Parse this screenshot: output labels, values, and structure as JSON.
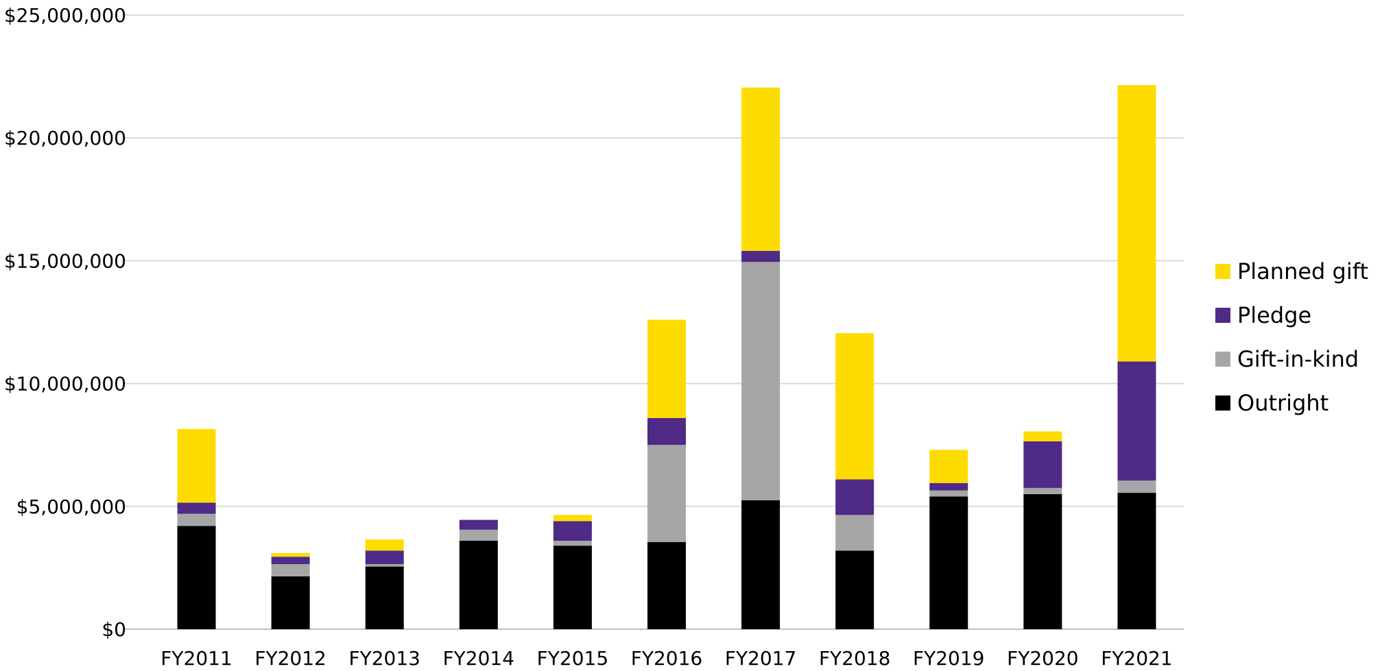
{
  "chart_data": {
    "type": "bar",
    "stacked": true,
    "title": "",
    "xlabel": "",
    "ylabel": "",
    "ylim": [
      0,
      25000000
    ],
    "y_ticks": [
      0,
      5000000,
      10000000,
      15000000,
      20000000,
      25000000
    ],
    "y_tick_labels": [
      "$0",
      "$5,000,000",
      "$10,000,000",
      "$15,000,000",
      "$20,000,000",
      "$25,000,000"
    ],
    "grid": true,
    "legend_position": "right",
    "categories": [
      "FY2011",
      "FY2012",
      "FY2013",
      "FY2014",
      "FY2015",
      "FY2016",
      "FY2017",
      "FY2018",
      "FY2019",
      "FY2020",
      "FY2021"
    ],
    "series": [
      {
        "name": "Outright",
        "color": "#000000",
        "values": [
          4200000,
          2150000,
          2550000,
          3600000,
          3400000,
          3550000,
          5250000,
          3200000,
          5400000,
          5500000,
          5550000
        ]
      },
      {
        "name": "Gift-in-kind",
        "color": "#a6a6a6",
        "values": [
          500000,
          500000,
          100000,
          450000,
          200000,
          3950000,
          9700000,
          1450000,
          250000,
          250000,
          500000
        ]
      },
      {
        "name": "Pledge",
        "color": "#4f2a87",
        "values": [
          450000,
          300000,
          550000,
          400000,
          800000,
          1100000,
          450000,
          1450000,
          300000,
          1900000,
          4850000
        ]
      },
      {
        "name": "Planned gift",
        "color": "#ffdc00",
        "values": [
          3000000,
          150000,
          450000,
          0,
          250000,
          4000000,
          6650000,
          5950000,
          1350000,
          400000,
          11250000
        ]
      }
    ],
    "legend_order": [
      "Planned gift",
      "Pledge",
      "Gift-in-kind",
      "Outright"
    ]
  }
}
